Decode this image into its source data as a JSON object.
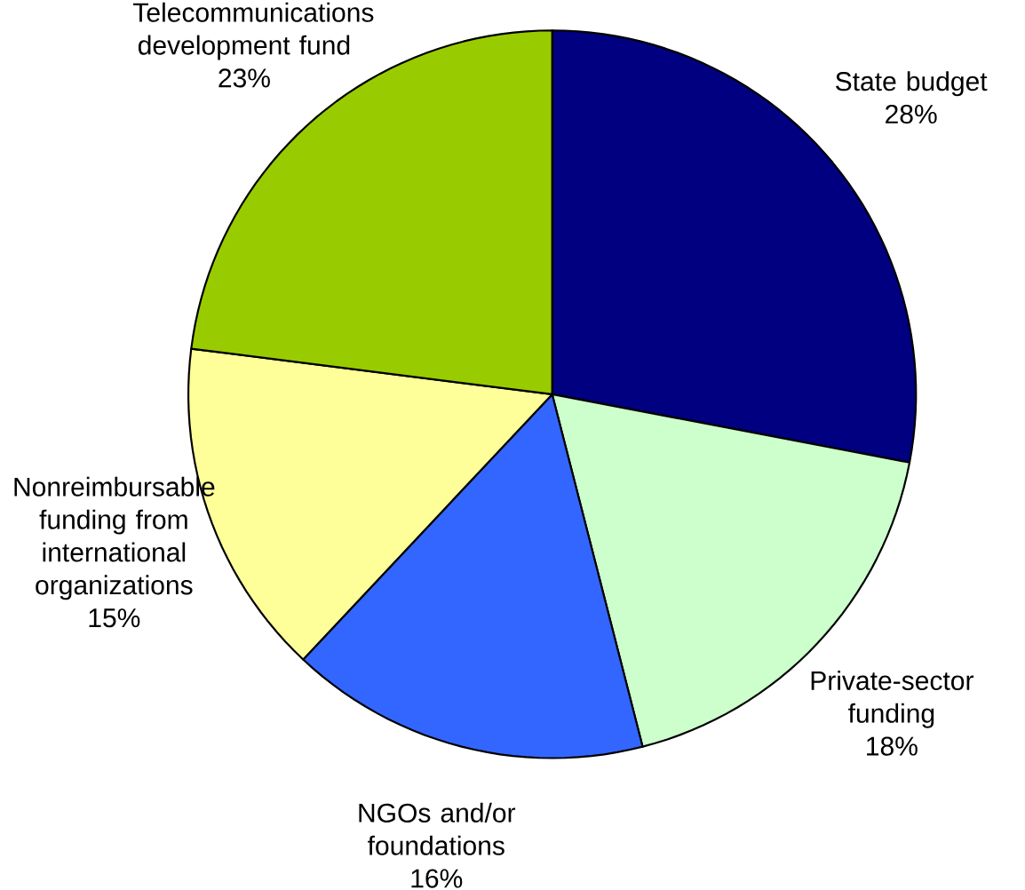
{
  "chart_data": {
    "type": "pie",
    "categories": [
      "State budget",
      "Private-sector funding",
      "NGOs and/or foundations",
      "Nonreimbursable funding from international organizations",
      "Telecommunications development fund"
    ],
    "values": [
      28,
      18,
      16,
      15,
      23
    ],
    "colors": [
      "#000080",
      "#ccffcc",
      "#3366ff",
      "#ffff99",
      "#99cc00"
    ],
    "value_labels": [
      "28%",
      "18%",
      "16%",
      "15%",
      "23%"
    ]
  }
}
